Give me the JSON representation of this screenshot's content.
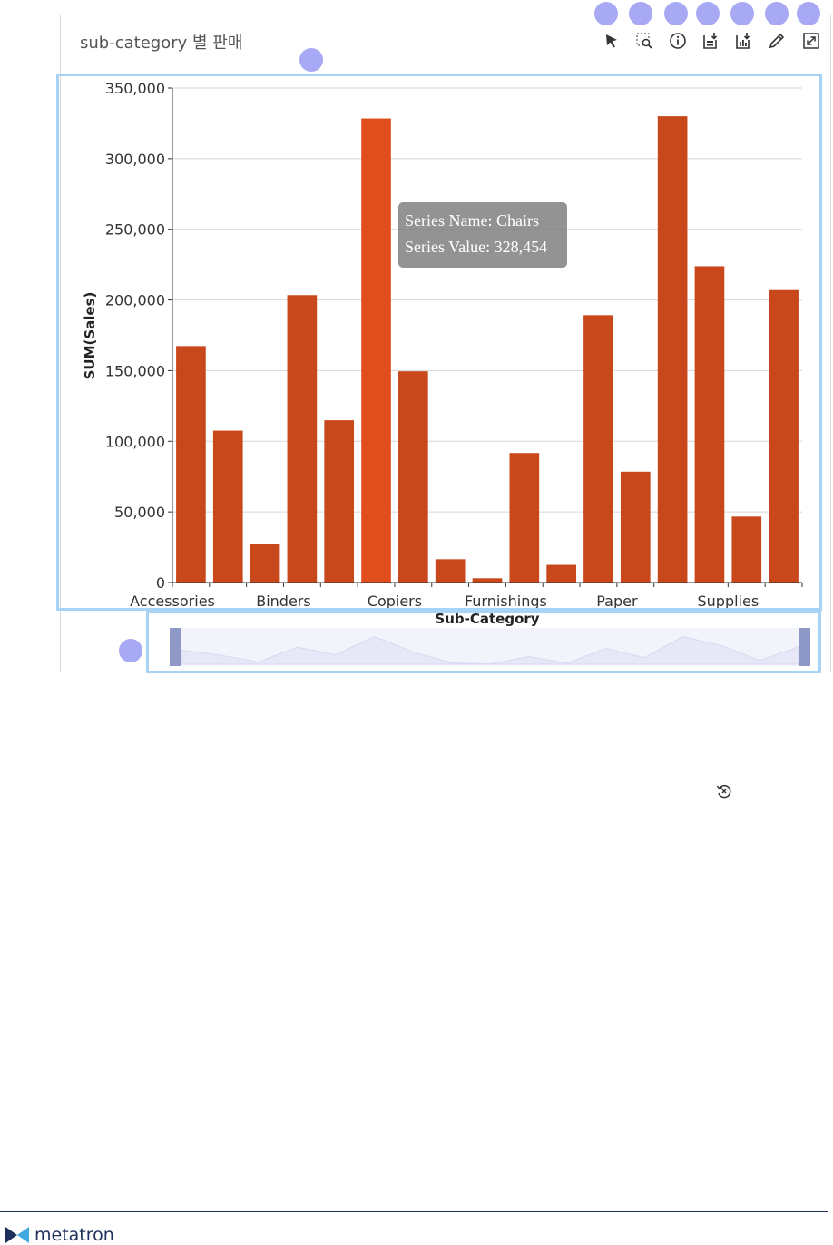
{
  "widget": {
    "title": "sub-category 별 판매"
  },
  "toolbar": {
    "items": [
      {
        "icon": "cursor-pointer-icon"
      },
      {
        "icon": "zoom-select-icon"
      },
      {
        "icon": "info-icon"
      },
      {
        "icon": "download-data-icon"
      },
      {
        "icon": "download-chart-icon"
      },
      {
        "icon": "edit-pencil-icon"
      },
      {
        "icon": "expand-icon"
      }
    ]
  },
  "tooltip": {
    "name_line": "Series Name: Chairs",
    "value_line": "Series Value: 328,454"
  },
  "colors": {
    "bar": "#c8471b",
    "bar_highlight": "#e04e1e",
    "marker": "#a7a9f5",
    "highlight_border": "#a8d3f5",
    "slider_handle": "#8e99c8"
  },
  "chart_data": {
    "type": "bar",
    "xlabel": "Sub-Category",
    "ylabel": "SUM(Sales)",
    "ylim": [
      0,
      350000
    ],
    "yticks": [
      "0",
      "50,000",
      "100,000",
      "150,000",
      "200,000",
      "250,000",
      "300,000",
      "350,000"
    ],
    "yticks_values": [
      0,
      50000,
      100000,
      150000,
      200000,
      250000,
      300000,
      350000
    ],
    "x_tick_labels": [
      "Accessories",
      "Binders",
      "Copiers",
      "Furnishings",
      "Paper",
      "Supplies"
    ],
    "categories": [
      "Accessories",
      "",
      "",
      "Binders",
      "",
      "Chairs",
      "Copiers",
      "",
      "",
      "Furnishings",
      "",
      "",
      "Paper",
      "",
      "",
      "Supplies",
      ""
    ],
    "values": [
      167380,
      107532,
      27119,
      203413,
      114880,
      328454,
      149528,
      16476,
      3024,
      91705,
      12486,
      189239,
      78479,
      330007,
      223844,
      46674,
      206966
    ],
    "highlighted_index": 5,
    "grid": true
  },
  "footer": {
    "brand": "metatron"
  }
}
